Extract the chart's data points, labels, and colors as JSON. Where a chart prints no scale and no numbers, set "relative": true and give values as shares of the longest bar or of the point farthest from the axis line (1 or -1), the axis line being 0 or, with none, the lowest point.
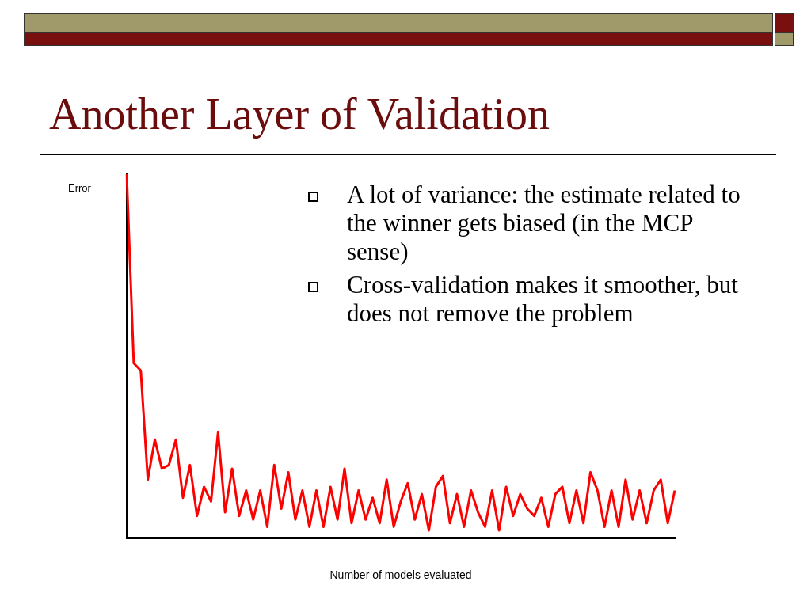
{
  "chart_data": {
    "type": "line",
    "title": "Another Layer of Validation",
    "xlabel": "Number of models evaluated",
    "ylabel": "Error",
    "relative": true,
    "legend": false,
    "grid": false,
    "marker": "none",
    "annotations": [
      "A lot of variance: the estimate related to the winner gets biased (in the MCP sense)",
      "Cross-validation makes it smoother, but does not remove the problem"
    ],
    "categories": [
      null,
      null,
      null,
      null,
      null,
      null,
      null,
      null,
      null,
      null,
      null,
      null,
      null,
      null,
      null,
      null,
      null,
      null,
      null,
      null,
      null,
      null,
      null,
      null,
      null,
      null,
      null,
      null,
      null,
      null,
      null,
      null,
      null,
      null,
      null,
      null,
      null,
      null,
      null,
      null,
      null,
      null,
      null,
      null,
      null,
      null,
      null,
      null,
      null,
      null,
      null,
      null,
      null,
      null,
      null,
      null,
      null,
      null,
      null,
      null,
      null,
      null,
      null,
      null,
      null,
      null,
      null,
      null,
      null,
      null,
      null,
      null,
      null,
      null,
      null,
      null,
      null,
      null,
      null
    ],
    "series": [
      {
        "color": "#ff0000",
        "values": [
          1.0,
          0.48,
          0.46,
          0.16,
          0.27,
          0.19,
          0.2,
          0.27,
          0.11,
          0.2,
          0.06,
          0.14,
          0.1,
          0.29,
          0.07,
          0.19,
          0.06,
          0.13,
          0.05,
          0.13,
          0.03,
          0.2,
          0.08,
          0.18,
          0.05,
          0.13,
          0.03,
          0.13,
          0.03,
          0.14,
          0.05,
          0.19,
          0.04,
          0.13,
          0.05,
          0.11,
          0.04,
          0.16,
          0.03,
          0.1,
          0.15,
          0.05,
          0.12,
          0.02,
          0.14,
          0.17,
          0.04,
          0.12,
          0.03,
          0.13,
          0.07,
          0.03,
          0.13,
          0.02,
          0.14,
          0.06,
          0.12,
          0.08,
          0.06,
          0.11,
          0.03,
          0.12,
          0.14,
          0.04,
          0.13,
          0.04,
          0.18,
          0.13,
          0.03,
          0.13,
          0.03,
          0.16,
          0.05,
          0.13,
          0.04,
          0.13,
          0.16,
          0.04,
          0.13
        ]
      }
    ]
  }
}
